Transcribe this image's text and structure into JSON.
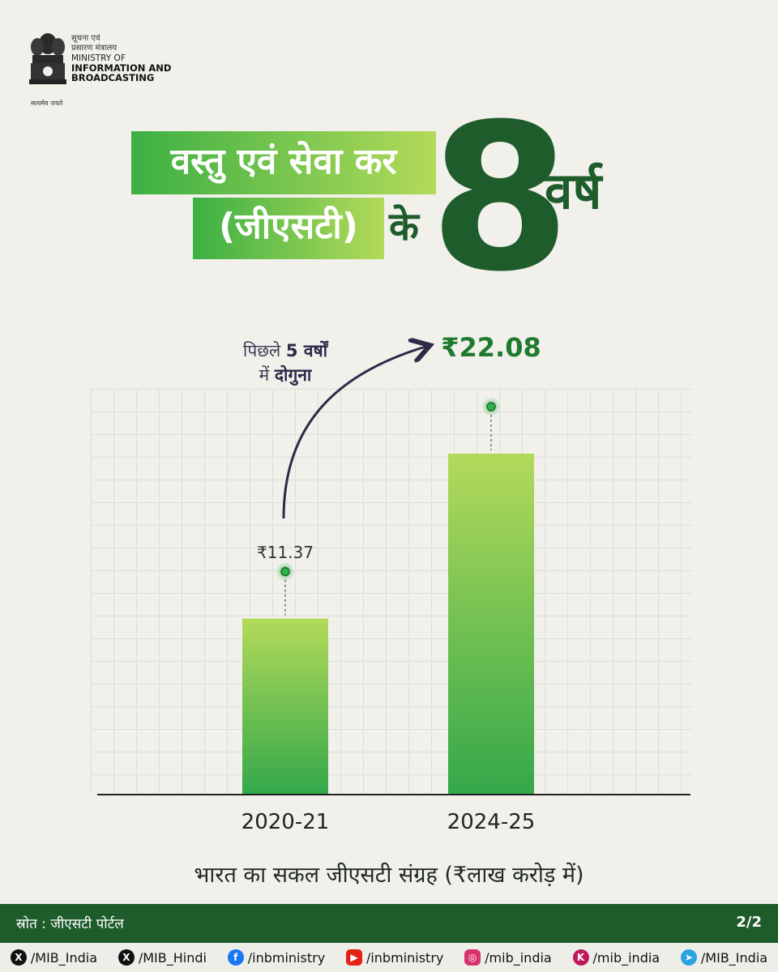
{
  "header": {
    "logo_hi_line1": "सूचना एवं",
    "logo_hi_line2": "प्रसारण मंत्रालय",
    "logo_en_line1": "MINISTRY OF",
    "logo_en_line2": "INFORMATION AND",
    "logo_en_line3": "BROADCASTING",
    "motto": "सत्यमेव जयते"
  },
  "title": {
    "line1": "वस्तु एवं सेवा कर",
    "line2": "(जीएसटी)",
    "ke": "के",
    "number": "8",
    "varsh": "वर्ष"
  },
  "annotation": {
    "part1": "पिछले",
    "bold1": "5 वर्षों",
    "part2": "में",
    "bold2": "दोगुना"
  },
  "chart_data": {
    "type": "bar",
    "categories": [
      "2020-21",
      "2024-25"
    ],
    "values": [
      11.37,
      22.08
    ],
    "value_labels": [
      "₹11.37",
      "₹22.08"
    ],
    "title": "भारत का सकल जीएसटी संग्रह (₹लाख करोड़ में)",
    "ylim": [
      0,
      22.08
    ],
    "grid": true,
    "colors": {
      "bar_top": "#b3da5a",
      "bar_bottom": "#34a84a",
      "marker": "#2db34a"
    }
  },
  "footer": {
    "source": "स्रोत : जीएसटी पोर्टल",
    "page": "2/2",
    "socials": [
      {
        "icon": "x-icon",
        "handle": "/MIB_India"
      },
      {
        "icon": "x-icon",
        "handle": "/MIB_Hindi"
      },
      {
        "icon": "facebook-icon",
        "handle": "/inbministry"
      },
      {
        "icon": "youtube-icon",
        "handle": "/inbministry"
      },
      {
        "icon": "instagram-icon",
        "handle": "/mib_india"
      },
      {
        "icon": "kooapp-icon",
        "handle": "/mib_india"
      },
      {
        "icon": "telegram-icon",
        "handle": "/MIB_India"
      }
    ],
    "colors": {
      "band": "#1e5c2b"
    }
  }
}
